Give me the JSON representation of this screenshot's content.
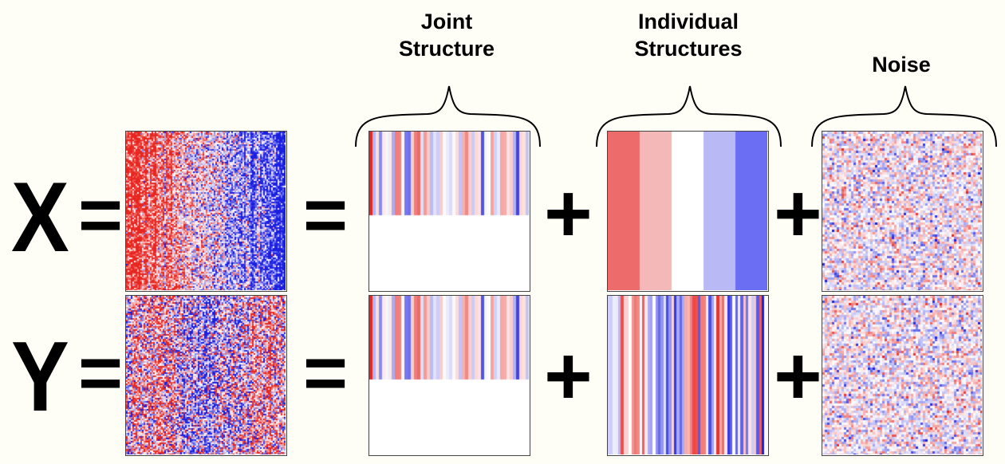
{
  "headers": {
    "joint": [
      "Joint",
      "Structure"
    ],
    "individual": [
      "Individual",
      "Structures"
    ],
    "noise": [
      "Noise"
    ]
  },
  "rows": [
    {
      "variable": "X",
      "equals1": "=",
      "equals2": "=",
      "plus1": "+",
      "plus2": "+"
    },
    {
      "variable": "Y",
      "equals1": "=",
      "equals2": "=",
      "plus1": "+",
      "plus2": "+"
    }
  ],
  "colors": {
    "red": "#e8251f",
    "blue": "#1a1fe0",
    "neutral": "#ffffff",
    "border": "#444444",
    "background": "#fffef6"
  },
  "individual_x_stripes": [
    "#ee6b6b",
    "#f5b8b8",
    "#ffffff",
    "#b9baf5",
    "#6b6ef2"
  ]
}
